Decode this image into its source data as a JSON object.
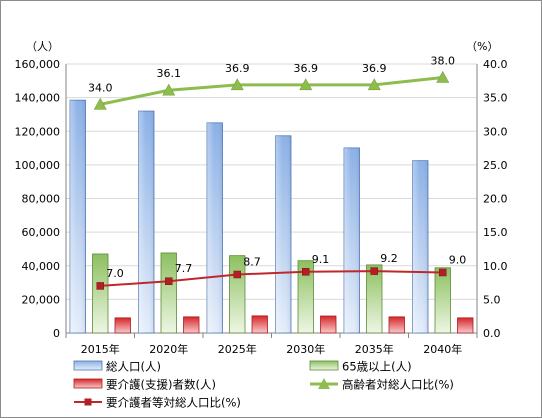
{
  "chart_data": {
    "type": "bar",
    "categories": [
      "2015年",
      "2020年",
      "2025年",
      "2030年",
      "2035年",
      "2040年"
    ],
    "y_left": {
      "unit": "（人）",
      "range": [
        0,
        160000
      ],
      "ticks": [
        "0",
        "20,000",
        "40,000",
        "60,000",
        "80,000",
        "100,000",
        "120,000",
        "140,000",
        "160,000"
      ]
    },
    "y_right": {
      "unit": "（%）",
      "range": [
        0.0,
        40.0
      ],
      "ticks": [
        "0.0",
        "5.0",
        "10.0",
        "15.0",
        "20.0",
        "25.0",
        "30.0",
        "35.0",
        "40.0"
      ]
    },
    "grid": true,
    "legend_position": "bottom",
    "series": [
      {
        "name": "総人口(人)",
        "type": "bar",
        "axis": "left",
        "color": "#7da1d9",
        "values": [
          138500,
          132000,
          125000,
          117300,
          110100,
          102500
        ]
      },
      {
        "name": "65歳以上(人)",
        "type": "bar",
        "axis": "left",
        "color": "#8fbf63",
        "values": [
          47000,
          47600,
          46000,
          43000,
          40500,
          38800
        ]
      },
      {
        "name": "要介護(支援)者数(人)",
        "type": "bar",
        "axis": "left",
        "color": "#d93a3a",
        "values": [
          9000,
          9600,
          10200,
          10100,
          9600,
          9000
        ]
      },
      {
        "name": "高齢者対総人口比(%)",
        "type": "line",
        "axis": "right",
        "color": "#8fbc4f",
        "marker": "triangle",
        "values": [
          34.0,
          36.1,
          36.9,
          36.9,
          36.9,
          38.0
        ],
        "labels": [
          "34.0",
          "36.1",
          "36.9",
          "36.9",
          "36.9",
          "38.0"
        ]
      },
      {
        "name": "要介護者等対総人口比(%)",
        "type": "line",
        "axis": "right",
        "color": "#c0272d",
        "marker": "square",
        "values": [
          7.0,
          7.7,
          8.7,
          9.1,
          9.2,
          9.0
        ],
        "labels": [
          "7.0",
          "7.7",
          "8.7",
          "9.1",
          "9.2",
          "9.0"
        ]
      }
    ]
  }
}
